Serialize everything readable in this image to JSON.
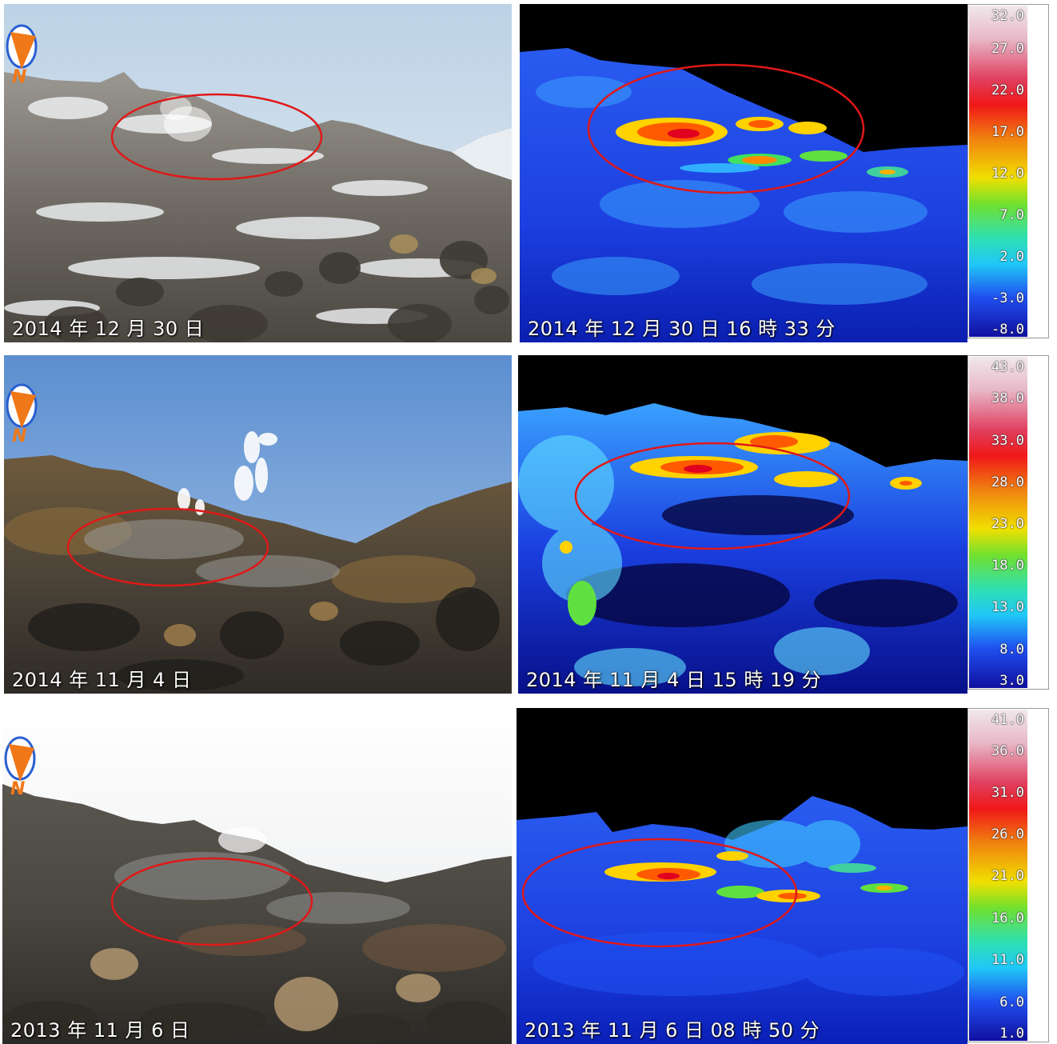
{
  "rows": [
    {
      "photo_caption": "2014 年 12 月 30 日",
      "thermal_caption": "2014 年 12 月 30 日 16 時 33 分",
      "scale_labels": [
        "32.0",
        "27.0",
        "22.0",
        "17.0",
        "12.0",
        "7.0",
        "2.0",
        "-3.0",
        "-8.0"
      ]
    },
    {
      "photo_caption": "2014 年 11 月 4 日",
      "thermal_caption": "2014 年 11 月 4 日 15 時 19 分",
      "scale_labels": [
        "43.0",
        "38.0",
        "33.0",
        "28.0",
        "23.0",
        "18.0",
        "13.0",
        "8.0",
        "3.0"
      ]
    },
    {
      "photo_caption": "2013 年 11 月 6 日",
      "thermal_caption": "2013 年 11 月 6 日 08 時 50 分",
      "scale_labels": [
        "41.0",
        "36.0",
        "31.0",
        "26.0",
        "21.0",
        "16.0",
        "11.0",
        "6.0",
        "1.0"
      ]
    }
  ],
  "compass_letter": "N",
  "colors": {
    "ellipse": "#e01818",
    "compass": "#f07818",
    "compass_ring": "#2a5fd0"
  },
  "icons": [
    "north-arrow-icon"
  ]
}
